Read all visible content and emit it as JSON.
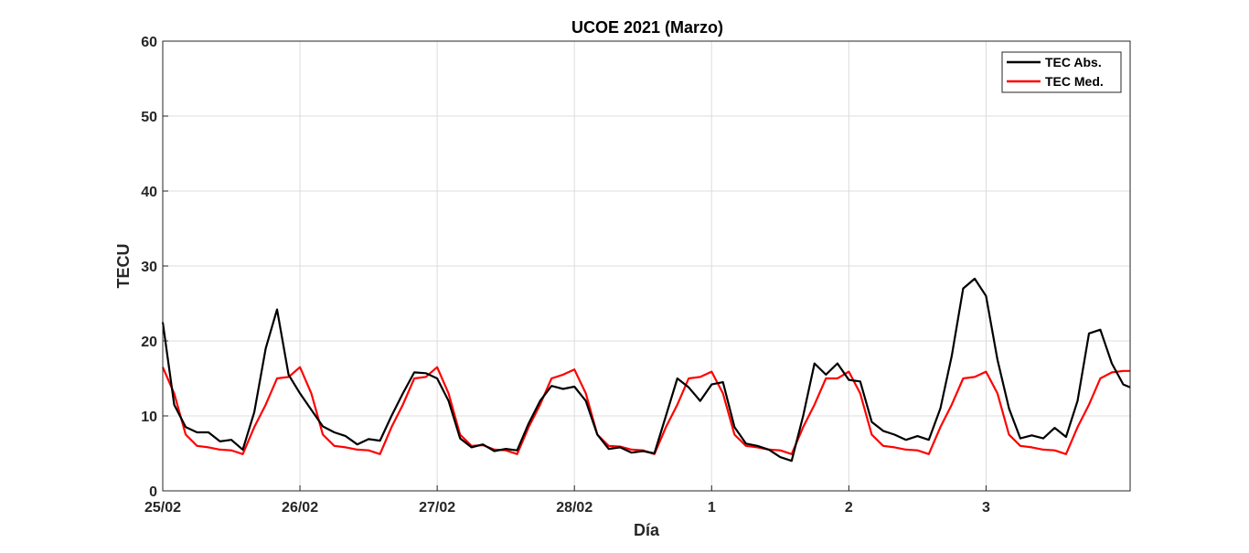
{
  "chart_data": {
    "type": "line",
    "title": "UCOE 2021 (Marzo)",
    "xlabel": "Día",
    "ylabel": "TECU",
    "ylim": [
      0,
      60
    ],
    "xlim": [
      0,
      7.05
    ],
    "yticks": [
      0,
      10,
      20,
      30,
      40,
      50,
      60
    ],
    "xticks": [
      {
        "x": 0,
        "label": "25/02"
      },
      {
        "x": 1,
        "label": "26/02"
      },
      {
        "x": 2,
        "label": "27/02"
      },
      {
        "x": 3,
        "label": "28/02"
      },
      {
        "x": 4,
        "label": "1"
      },
      {
        "x": 5,
        "label": "2"
      },
      {
        "x": 6,
        "label": "3"
      }
    ],
    "grid": true,
    "legend_position": "top-right",
    "series": [
      {
        "name": "TEC Abs.",
        "color": "#000000",
        "x": [
          0,
          0.083,
          0.167,
          0.25,
          0.333,
          0.417,
          0.5,
          0.583,
          0.667,
          0.75,
          0.833,
          0.917,
          1.0,
          1.083,
          1.167,
          1.25,
          1.333,
          1.417,
          1.5,
          1.583,
          1.667,
          1.75,
          1.833,
          1.917,
          2.0,
          2.083,
          2.167,
          2.25,
          2.333,
          2.417,
          2.5,
          2.583,
          2.667,
          2.75,
          2.833,
          2.917,
          3.0,
          3.083,
          3.167,
          3.25,
          3.333,
          3.417,
          3.5,
          3.583,
          3.667,
          3.75,
          3.833,
          3.917,
          4.0,
          4.083,
          4.167,
          4.25,
          4.333,
          4.417,
          4.5,
          4.583,
          4.667,
          4.75,
          4.833,
          4.917,
          5.0,
          5.083,
          5.167,
          5.25,
          5.333,
          5.417,
          5.5,
          5.583,
          5.667,
          5.75,
          5.833,
          5.917,
          6.0,
          6.083,
          6.167,
          6.25,
          6.333,
          6.417,
          6.5,
          6.583,
          6.667,
          6.75,
          6.833,
          6.917,
          7.0,
          7.05
        ],
        "values": [
          22.5,
          11.5,
          8.5,
          7.8,
          7.8,
          6.6,
          6.8,
          5.5,
          10.5,
          19.0,
          24.2,
          15.5,
          13.0,
          10.8,
          8.6,
          7.8,
          7.3,
          6.2,
          6.9,
          6.7,
          10.0,
          13.0,
          15.8,
          15.7,
          15.0,
          12.0,
          7.0,
          5.8,
          6.2,
          5.3,
          5.6,
          5.4,
          9.0,
          12.0,
          14.0,
          13.6,
          13.9,
          12.0,
          7.5,
          5.6,
          5.8,
          5.1,
          5.3,
          5.0,
          10.0,
          15.0,
          13.8,
          12.0,
          14.2,
          14.5,
          8.5,
          6.3,
          6.0,
          5.5,
          4.5,
          4.0,
          10.0,
          17.0,
          15.5,
          17.0,
          14.8,
          14.6,
          9.2,
          8.0,
          7.5,
          6.8,
          7.3,
          6.8,
          11.0,
          18.0,
          27.0,
          28.3,
          26.0,
          17.5,
          11.0,
          7.0,
          7.4,
          7.0,
          8.4,
          7.2,
          12.0,
          21.0,
          21.5,
          17.0,
          14.2,
          13.8
        ]
      },
      {
        "name": "TEC Med.",
        "color": "#ff0000",
        "x": [
          0,
          0.083,
          0.167,
          0.25,
          0.333,
          0.417,
          0.5,
          0.583,
          0.667,
          0.75,
          0.833,
          0.917,
          1.0,
          1.083,
          1.167,
          1.25,
          1.333,
          1.417,
          1.5,
          1.583,
          1.667,
          1.75,
          1.833,
          1.917,
          2.0,
          2.083,
          2.167,
          2.25,
          2.333,
          2.417,
          2.5,
          2.583,
          2.667,
          2.75,
          2.833,
          2.917,
          3.0,
          3.083,
          3.167,
          3.25,
          3.333,
          3.417,
          3.5,
          3.583,
          3.667,
          3.75,
          3.833,
          3.917,
          4.0,
          4.083,
          4.167,
          4.25,
          4.333,
          4.417,
          4.5,
          4.583,
          4.667,
          4.75,
          4.833,
          4.917,
          5.0,
          5.083,
          5.167,
          5.25,
          5.333,
          5.417,
          5.5,
          5.583,
          5.667,
          5.75,
          5.833,
          5.917,
          6.0,
          6.083,
          6.167,
          6.25,
          6.333,
          6.417,
          6.5,
          6.583,
          6.667,
          6.75,
          6.833,
          6.917,
          7.0,
          7.05
        ],
        "values": [
          16.5,
          13.0,
          7.5,
          6.0,
          5.8,
          5.5,
          5.4,
          4.9,
          8.5,
          11.5,
          15.0,
          15.2,
          16.5,
          13.0,
          7.5,
          6.0,
          5.8,
          5.5,
          5.4,
          4.9,
          8.5,
          11.5,
          15.0,
          15.2,
          16.5,
          13.0,
          7.5,
          6.0,
          6.1,
          5.5,
          5.4,
          4.9,
          8.5,
          11.5,
          15.0,
          15.5,
          16.2,
          13.0,
          7.5,
          6.0,
          5.9,
          5.5,
          5.4,
          4.9,
          8.5,
          11.5,
          15.0,
          15.2,
          15.9,
          13.0,
          7.5,
          6.0,
          5.8,
          5.5,
          5.4,
          4.9,
          8.5,
          11.5,
          15.0,
          15.0,
          15.9,
          13.0,
          7.5,
          6.0,
          5.8,
          5.5,
          5.4,
          4.9,
          8.5,
          11.5,
          15.0,
          15.2,
          15.9,
          13.0,
          7.5,
          6.0,
          5.8,
          5.5,
          5.4,
          4.9,
          8.5,
          11.5,
          15.0,
          15.8,
          16.0,
          16.0
        ]
      }
    ]
  }
}
